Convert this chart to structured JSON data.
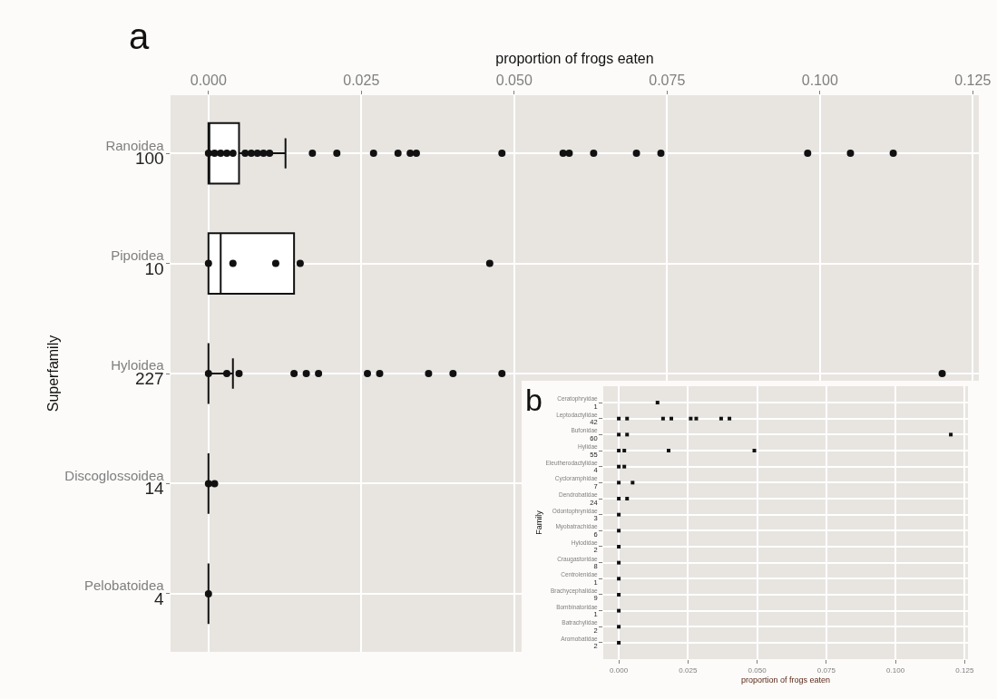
{
  "chart_data": [
    {
      "type": "box",
      "orientation": "horizontal",
      "xlabel": "proportion of frogs eaten",
      "ylabel": "Superfamily",
      "annotations": [
        "a"
      ],
      "categories": [
        "Ranoidea\n100",
        "Pipoidea\n10",
        "Hyloidea\n227",
        "Discoglossoidea\n14",
        "Pelobatoidea\n4"
      ],
      "xlim": [
        -0.0062,
        0.126
      ],
      "xticks": [
        {
          "value": 0,
          "label": "0.000"
        },
        {
          "value": 0.025,
          "label": "0.025"
        },
        {
          "value": 0.05,
          "label": "0.050"
        },
        {
          "value": 0.075,
          "label": "0.075"
        },
        {
          "value": 0.1,
          "label": "0.100"
        },
        {
          "value": 0.125,
          "label": "0.125"
        }
      ],
      "grid": true,
      "marker": "circle",
      "color": "#111111",
      "boxes": [
        {
          "low": 0,
          "q1": 0,
          "median": 0,
          "q3": 0.005,
          "high": 0.0126
        },
        {
          "low": 0,
          "q1": 0,
          "median": 0.002,
          "q3": 0.014,
          "high": 0.014
        },
        {
          "low": 0,
          "q1": 0,
          "median": 0,
          "q3": 0,
          "high": 0.004
        },
        {
          "low": 0,
          "q1": 0,
          "median": 0,
          "q3": 0,
          "high": 0
        },
        {
          "low": 0,
          "q1": 0,
          "median": 0,
          "q3": 0,
          "high": 0
        }
      ],
      "series": [
        {
          "type": "scatter",
          "color": "#111111",
          "x": [
            "Ranoidea\n100",
            "Ranoidea\n100",
            "Ranoidea\n100",
            "Ranoidea\n100",
            "Ranoidea\n100",
            "Ranoidea\n100",
            "Ranoidea\n100",
            "Ranoidea\n100",
            "Ranoidea\n100",
            "Ranoidea\n100",
            "Ranoidea\n100",
            "Ranoidea\n100",
            "Ranoidea\n100",
            "Ranoidea\n100",
            "Ranoidea\n100",
            "Ranoidea\n100",
            "Ranoidea\n100",
            "Ranoidea\n100",
            "Ranoidea\n100",
            "Ranoidea\n100",
            "Ranoidea\n100",
            "Ranoidea\n100",
            "Ranoidea\n100",
            "Ranoidea\n100",
            "Ranoidea\n100",
            "Pipoidea\n10",
            "Pipoidea\n10",
            "Pipoidea\n10",
            "Pipoidea\n10",
            "Pipoidea\n10",
            "Hyloidea\n227",
            "Hyloidea\n227",
            "Hyloidea\n227",
            "Hyloidea\n227",
            "Hyloidea\n227",
            "Hyloidea\n227",
            "Hyloidea\n227",
            "Hyloidea\n227",
            "Hyloidea\n227",
            "Hyloidea\n227",
            "Hyloidea\n227",
            "Hyloidea\n227",
            "Discoglossoidea\n14",
            "Discoglossoidea\n14",
            "Pelobatoidea\n4"
          ],
          "values": [
            0,
            0.001,
            0.002,
            0.003,
            0.004,
            0.006,
            0.007,
            0.008,
            0.009,
            0.01,
            0.017,
            0.021,
            0.027,
            0.031,
            0.033,
            0.034,
            0.048,
            0.058,
            0.059,
            0.063,
            0.07,
            0.074,
            0.098,
            0.105,
            0.112,
            0,
            0.004,
            0.011,
            0.015,
            0.046,
            0,
            0.003,
            0.005,
            0.014,
            0.016,
            0.018,
            0.026,
            0.028,
            0.036,
            0.04,
            0.048,
            0.12,
            0,
            0.001,
            0
          ]
        }
      ]
    },
    {
      "type": "scatter",
      "orientation": "horizontal",
      "xlabel": "proportion of frogs eaten",
      "ylabel": "Family",
      "annotations": [
        "b"
      ],
      "categories": [
        "Ceratophryidae\n1",
        "Leptodactylidae\n42",
        "Bufonidae\n60",
        "Hylidae\n55",
        "Eleutherodactylidae\n4",
        "Cycloramphidae\n7",
        "Dendrobatidae\n24",
        "Odontophrynidae\n3",
        "Myobatrachidae\n6",
        "Hylodidae\n2",
        "Craugastoridae\n8",
        "Centrolenidae\n1",
        "Brachycephalidae\n9",
        "Bombinatoridae\n1",
        "Batrachylidae\n2",
        "Aromobatidae\n2"
      ],
      "xlim": [
        -0.0056,
        0.1262
      ],
      "xticks": [
        {
          "value": 0,
          "label": "0.000"
        },
        {
          "value": 0.025,
          "label": "0.025"
        },
        {
          "value": 0.05,
          "label": "0.050"
        },
        {
          "value": 0.075,
          "label": "0.075"
        },
        {
          "value": 0.1,
          "label": "0.100"
        },
        {
          "value": 0.125,
          "label": "0.125"
        }
      ],
      "grid": true,
      "marker": "square",
      "series": [
        {
          "type": "scatter",
          "color": "#111111",
          "x": [
            "Ceratophryidae\n1",
            "Leptodactylidae\n42",
            "Leptodactylidae\n42",
            "Leptodactylidae\n42",
            "Leptodactylidae\n42",
            "Leptodactylidae\n42",
            "Leptodactylidae\n42",
            "Leptodactylidae\n42",
            "Leptodactylidae\n42",
            "Bufonidae\n60",
            "Bufonidae\n60",
            "Bufonidae\n60",
            "Hylidae\n55",
            "Hylidae\n55",
            "Hylidae\n55",
            "Hylidae\n55",
            "Eleutherodactylidae\n4",
            "Eleutherodactylidae\n4",
            "Cycloramphidae\n7",
            "Cycloramphidae\n7",
            "Dendrobatidae\n24",
            "Dendrobatidae\n24",
            "Odontophrynidae\n3",
            "Myobatrachidae\n6",
            "Hylodidae\n2",
            "Craugastoridae\n8",
            "Centrolenidae\n1",
            "Brachycephalidae\n9",
            "Bombinatoridae\n1",
            "Batrachylidae\n2",
            "Aromobatidae\n2"
          ],
          "values": [
            0.014,
            0,
            0.003,
            0.016,
            0.019,
            0.026,
            0.028,
            0.037,
            0.04,
            0,
            0.003,
            0.12,
            0,
            0.002,
            0.018,
            0.049,
            0,
            0.002,
            0,
            0.005,
            0,
            0.003,
            0,
            0,
            0,
            0,
            0,
            0,
            0,
            0,
            0
          ]
        }
      ]
    }
  ]
}
